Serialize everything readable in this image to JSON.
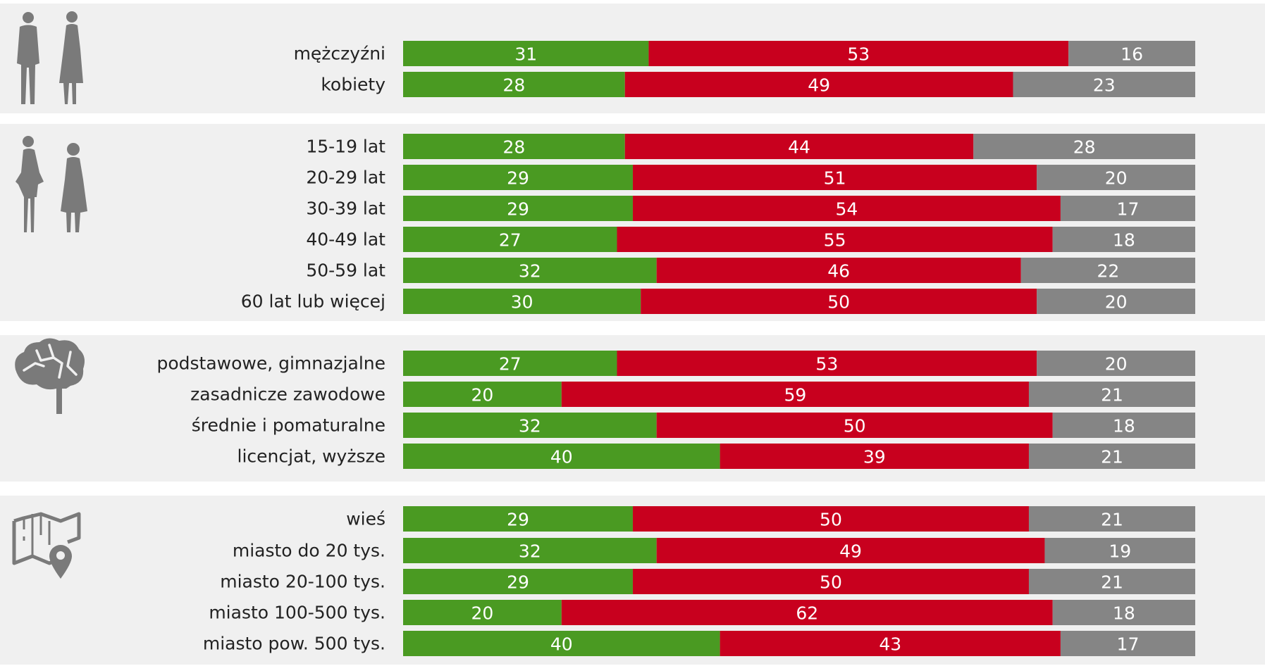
{
  "chart_data": {
    "type": "bar",
    "orientation": "horizontal",
    "stacked": true,
    "normalized_to": 100,
    "xlim": [
      0,
      100
    ],
    "legend": "none",
    "grid": false,
    "colors": {
      "green": "#4a9a22",
      "red": "#c8001e",
      "gray": "#858585",
      "panel": "#f0f0f0",
      "icon": "#7a7a7a"
    },
    "segment_colors": [
      "#4a9a22",
      "#c8001e",
      "#858585"
    ],
    "groups": [
      {
        "icon": "man-and-woman-silhouette-icon",
        "rows": [
          {
            "label": "mężczyźni",
            "values": [
              31,
              53,
              16
            ]
          },
          {
            "label": "kobiety",
            "values": [
              28,
              49,
              23
            ]
          }
        ]
      },
      {
        "icon": "young-and-elderly-women-silhouette-icon",
        "rows": [
          {
            "label": "15-19 lat",
            "values": [
              28,
              44,
              28
            ]
          },
          {
            "label": "20-29 lat",
            "values": [
              29,
              51,
              20
            ]
          },
          {
            "label": "30-39 lat",
            "values": [
              29,
              54,
              17
            ]
          },
          {
            "label": "40-49 lat",
            "values": [
              27,
              55,
              18
            ]
          },
          {
            "label": "50-59 lat",
            "values": [
              32,
              46,
              22
            ]
          },
          {
            "label": "60 lat lub więcej",
            "values": [
              30,
              50,
              20
            ]
          }
        ]
      },
      {
        "icon": "brain-icon",
        "rows": [
          {
            "label": "podstawowe, gimnazjalne",
            "values": [
              27,
              53,
              20
            ]
          },
          {
            "label": "zasadnicze zawodowe",
            "values": [
              20,
              59,
              21
            ]
          },
          {
            "label": "średnie i pomaturalne",
            "values": [
              32,
              50,
              18
            ]
          },
          {
            "label": "licencjat, wyższe",
            "values": [
              40,
              39,
              21
            ]
          }
        ]
      },
      {
        "icon": "map-with-location-pin-icon",
        "rows": [
          {
            "label": "wieś",
            "values": [
              29,
              50,
              21
            ]
          },
          {
            "label": "miasto do 20 tys.",
            "values": [
              32,
              49,
              19
            ]
          },
          {
            "label": "miasto 20-100 tys.",
            "values": [
              29,
              50,
              21
            ]
          },
          {
            "label": "miasto 100-500 tys.",
            "values": [
              20,
              62,
              18
            ]
          },
          {
            "label": "miasto pow. 500 tys.",
            "values": [
              40,
              43,
              17
            ]
          }
        ]
      }
    ]
  }
}
